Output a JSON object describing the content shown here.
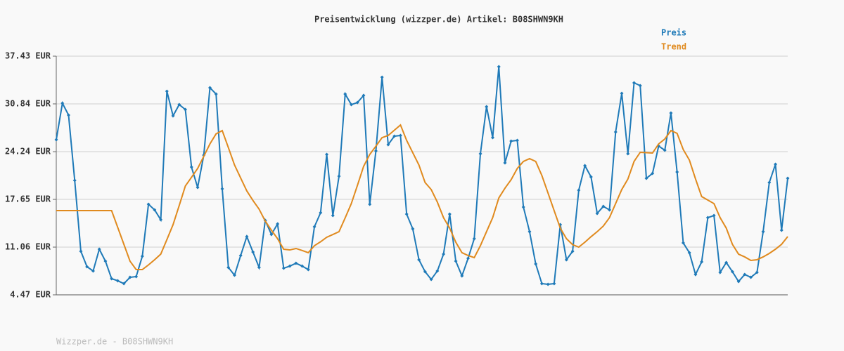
{
  "chart_data": {
    "type": "line",
    "title": "Preisentwicklung (wizzper.de) Artikel: B08SHWN9KH",
    "footer": "Wizzper.de - B08SHWN9KH",
    "grid": true,
    "legend": "top-right",
    "ylim": [
      4.47,
      37.43
    ],
    "yticks": [
      {
        "value": 4.47,
        "label": "4.47 EUR"
      },
      {
        "value": 11.06,
        "label": "11.06 EUR"
      },
      {
        "value": 17.65,
        "label": "17.65 EUR"
      },
      {
        "value": 24.24,
        "label": "24.24 EUR"
      },
      {
        "value": 30.84,
        "label": "30.84 EUR"
      },
      {
        "value": 37.43,
        "label": "37.43 EUR"
      }
    ],
    "series": [
      {
        "name": "Preis",
        "color": "#1f7ab8",
        "markers": true,
        "values": [
          25.89,
          30.93,
          29.29,
          20.27,
          10.48,
          8.35,
          7.77,
          10.77,
          9.12,
          6.7,
          6.41,
          6.02,
          6.89,
          6.99,
          9.8,
          16.98,
          16.2,
          14.84,
          32.58,
          29.19,
          30.74,
          30.06,
          22.11,
          19.3,
          23.76,
          33.07,
          32.2,
          19.11,
          8.25,
          7.18,
          9.9,
          12.52,
          10.38,
          8.25,
          14.75,
          12.81,
          14.26,
          8.15,
          8.44,
          8.83,
          8.44,
          7.96,
          13.87,
          15.81,
          23.86,
          15.42,
          20.85,
          32.2,
          30.74,
          31.03,
          32.0,
          16.98,
          24.34,
          34.52,
          25.22,
          26.38,
          26.48,
          15.62,
          13.58,
          9.32,
          7.67,
          6.6,
          7.77,
          10.09,
          15.62,
          9.12,
          7.09,
          9.51,
          12.23,
          23.96,
          30.45,
          26.18,
          35.98,
          22.7,
          25.7,
          25.8,
          16.59,
          13.19,
          8.74,
          6.02,
          5.92,
          6.02,
          14.16,
          9.32,
          10.48,
          18.91,
          22.31,
          20.76,
          15.72,
          16.68,
          16.2,
          26.96,
          32.29,
          23.96,
          33.75,
          33.36,
          20.56,
          21.24,
          25.02,
          24.44,
          29.58,
          21.43,
          11.64,
          10.29,
          7.28,
          9.03,
          15.13,
          15.42,
          7.57,
          8.93,
          7.67,
          6.31,
          7.28,
          6.89,
          7.57,
          13.19,
          19.98,
          22.5,
          13.39,
          20.56
        ]
      },
      {
        "name": "Trend",
        "color": "#e08a1e",
        "markers": false,
        "values": [
          16.1,
          16.1,
          16.1,
          16.1,
          16.1,
          16.1,
          16.1,
          16.1,
          16.1,
          16.1,
          13.78,
          11.45,
          9.12,
          7.96,
          7.96,
          8.6,
          9.32,
          10.09,
          12.1,
          14.16,
          16.8,
          19.5,
          20.7,
          21.92,
          23.6,
          25.31,
          26.7,
          27.15,
          24.8,
          22.4,
          20.6,
          18.82,
          17.5,
          16.3,
          14.65,
          13.4,
          12.23,
          10.77,
          10.67,
          10.87,
          10.6,
          10.29,
          11.26,
          11.8,
          12.42,
          12.8,
          13.19,
          15.1,
          17.07,
          19.6,
          22.21,
          23.86,
          25.0,
          26.18,
          26.48,
          27.2,
          27.93,
          25.8,
          24.1,
          22.4,
          19.98,
          19.01,
          17.27,
          15.13,
          13.68,
          11.74,
          10.29,
          9.9,
          9.61,
          11.26,
          13.2,
          15.13,
          17.85,
          19.2,
          20.37,
          21.92,
          22.89,
          23.28,
          22.89,
          20.95,
          18.53,
          16.1,
          13.68,
          12.23,
          11.4,
          11.06,
          11.74,
          12.5,
          13.19,
          13.97,
          15.13,
          17.07,
          19.01,
          20.47,
          22.89,
          24.15,
          24.1,
          24.05,
          25.31,
          25.99,
          27.15,
          26.77,
          24.54,
          23.08,
          20.47,
          18.04,
          17.56,
          17.07,
          15.13,
          13.68,
          11.45,
          10.09,
          9.71,
          9.22,
          9.32,
          9.71,
          10.19,
          10.77,
          11.45,
          12.52
        ]
      }
    ]
  }
}
